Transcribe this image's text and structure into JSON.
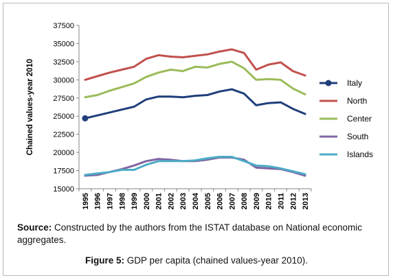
{
  "chart_data": {
    "type": "line",
    "x": [
      "1995",
      "1996",
      "1997",
      "1998",
      "1999",
      "2000",
      "2001",
      "2002",
      "2003",
      "2004",
      "2005",
      "2006",
      "2007",
      "2008",
      "2009",
      "2010",
      "2011",
      "2012",
      "2013"
    ],
    "ylabel": "Chained values-year 2010",
    "xlabel": "",
    "ylim": [
      15000,
      37500
    ],
    "yticks": [
      15000,
      17500,
      20000,
      22500,
      25000,
      27500,
      30000,
      32500,
      35000,
      37500
    ],
    "grid": false,
    "legend_position": "right",
    "series": [
      {
        "name": "Italy",
        "color": "#1f3e7a",
        "marker_first": true,
        "values": [
          24700,
          25100,
          25500,
          25900,
          26300,
          27300,
          27700,
          27700,
          27600,
          27800,
          27900,
          28400,
          28700,
          28100,
          26500,
          26800,
          26900,
          26000,
          25300
        ]
      },
      {
        "name": "North",
        "color": "#c0504d",
        "values": [
          30000,
          30500,
          31000,
          31400,
          31800,
          32900,
          33400,
          33200,
          33100,
          33300,
          33500,
          33900,
          34200,
          33700,
          31400,
          32100,
          32400,
          31200,
          30600
        ]
      },
      {
        "name": "Center",
        "color": "#9bbb59",
        "values": [
          27600,
          27900,
          28500,
          29000,
          29500,
          30400,
          31000,
          31400,
          31200,
          31800,
          31700,
          32200,
          32500,
          31600,
          30000,
          30100,
          30000,
          28800,
          28000
        ]
      },
      {
        "name": "South",
        "color": "#8064a2",
        "values": [
          16800,
          16900,
          17300,
          17700,
          18200,
          18800,
          19100,
          19000,
          18800,
          18800,
          19000,
          19300,
          19300,
          19000,
          17900,
          17800,
          17700,
          17300,
          16800
        ]
      },
      {
        "name": "Islands",
        "color": "#4bacc6",
        "values": [
          16900,
          17100,
          17300,
          17600,
          17600,
          18300,
          18800,
          18800,
          18800,
          18900,
          19200,
          19400,
          19400,
          18800,
          18200,
          18100,
          17800,
          17400,
          17000
        ]
      }
    ]
  },
  "source": {
    "label": "Source:",
    "text": " Constructed by the authors from the ISTAT database on National economic aggregates."
  },
  "caption": {
    "label": "Figure 5:",
    "text": " GDP per capita (chained values-year 2010)."
  }
}
